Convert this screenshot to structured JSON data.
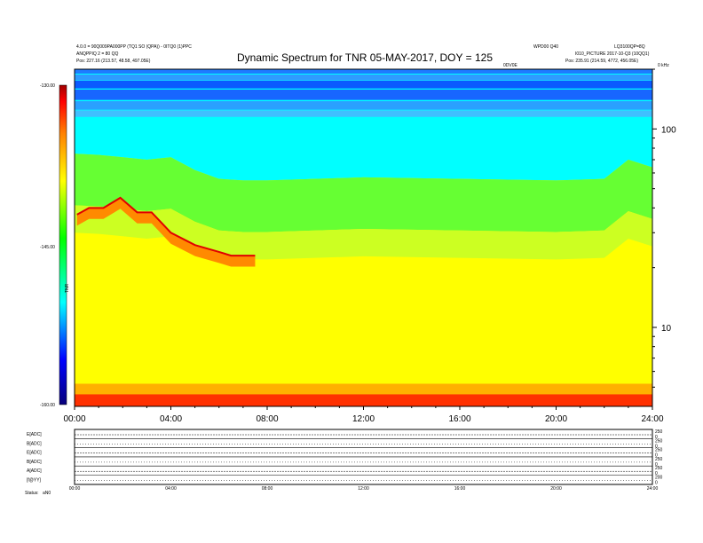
{
  "header": {
    "left_line1": "4.0.0 = 90Q009PA000PP (TQ1 SO (QPA)) - 0ITQ0 (1)PPC",
    "left_line2": "ANQPPIQ 2 = 80 QQ",
    "left_line3": "Pos: 227.16 (213.57, 48.58, 497.05E)",
    "right_line1": "WPD00 Q40",
    "right_line1b": "LQ3100QP=8Q",
    "right_line2": "I010_PICTURE 2017-10-Q3 (10QQ1)",
    "right_line3": "Pos: 235.91 (214.59, 4772, 456.05E)",
    "right_small": "0DV0E",
    "corner_label": "0 kHz"
  },
  "chart_data": {
    "type": "heatmap",
    "title": "Dynamic Spectrum for TNR 05-MAY-2017, DOY = 125",
    "x_ticks": [
      "00:00",
      "04:00",
      "08:00",
      "12:00",
      "16:00",
      "20:00",
      "24:00"
    ],
    "x_range_hours": [
      0,
      24
    ],
    "y_scale": "log",
    "y_ticks": [
      {
        "value": 100,
        "label": "100"
      },
      {
        "value": 10,
        "label": "10"
      }
    ],
    "y_range": [
      4,
      200
    ],
    "colorbar": {
      "ticks": [
        "-130.00",
        "-145.00",
        "-160.00"
      ],
      "range": [
        -160,
        -130
      ],
      "label": "TNR",
      "colors": [
        "#08007a",
        "#0000ff",
        "#00ffff",
        "#00ff00",
        "#ffff00",
        "#ff8000",
        "#ff0000",
        "#800000"
      ]
    },
    "features": [
      {
        "name": "intense band",
        "x_hours": [
          0.1,
          0.6,
          1.2,
          1.9,
          2.6,
          3.2,
          4.0,
          5.0,
          6.0,
          6.5,
          7.5
        ],
        "y": [
          37,
          40,
          40,
          45,
          38,
          38,
          30,
          26,
          24,
          23,
          23
        ]
      },
      {
        "name": "green boundary",
        "x_hours": [
          0,
          1,
          2,
          3,
          4,
          5,
          6,
          7,
          8,
          10,
          12,
          16,
          20,
          22,
          23,
          24
        ],
        "y": [
          75,
          74,
          72,
          70,
          72,
          62,
          56,
          55,
          55,
          56,
          57,
          56,
          55,
          56,
          70,
          64
        ]
      }
    ]
  },
  "panels": {
    "row_labels": [
      "E[ADC]",
      "B[ADC]",
      "E[ADC]",
      "B[ADC]",
      "A[ADC]",
      "[f@YY]"
    ],
    "right_labels_a": [
      "250",
      "250",
      "250",
      "250",
      "250",
      "200"
    ],
    "right_labels_b": [
      "0",
      "0",
      "0",
      "0",
      "0",
      "0"
    ],
    "x_ticks": [
      "00:00",
      "04:00",
      "08:00",
      "12:00",
      "16:00",
      "20:00",
      "24:00"
    ],
    "bottom_left": "Status: ",
    "bottom_left_value": "aN0"
  }
}
